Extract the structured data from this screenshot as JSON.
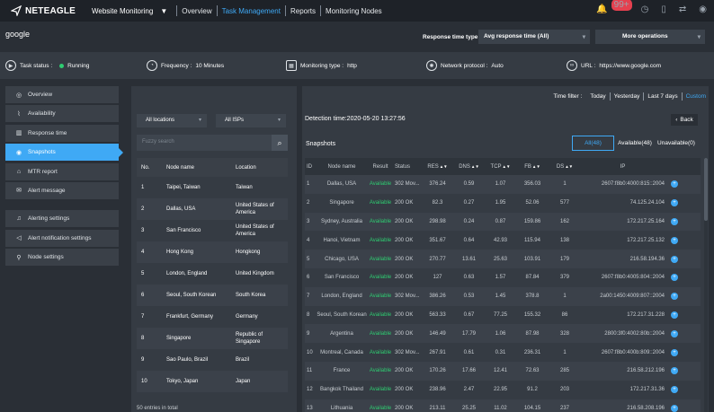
{
  "app": {
    "logo_text": "NETEAGLE",
    "module_menu": "Website Monitoring",
    "nav": [
      "Overview",
      "Task Management",
      "Reports",
      "Monitoring Nodes"
    ],
    "active_nav": "Task Management",
    "notifications_badge": "99+"
  },
  "page": {
    "title": "google",
    "response_type_label": "Response time type :",
    "response_type_value": "Avg response time (All)",
    "more_operations": "More operations"
  },
  "status": {
    "task_status_label": "Task status :",
    "task_status_value": "Running",
    "frequency_label": "Frequency :",
    "frequency_value": "10 Minutes",
    "monitoring_type_label": "Monitoring type :",
    "monitoring_type_value": "http",
    "network_protocol_label": "Network protocol :",
    "network_protocol_value": "Auto",
    "url_label": "URL :",
    "url_value": "https://www.google.com"
  },
  "sidebar": {
    "group1": [
      {
        "label": "Overview",
        "icon": "overview-icon"
      },
      {
        "label": "Availability",
        "icon": "availability-icon"
      },
      {
        "label": "Response time",
        "icon": "response-time-icon"
      },
      {
        "label": "Snapshots",
        "icon": "snapshots-icon",
        "active": true
      },
      {
        "label": "MTR report",
        "icon": "mtr-report-icon"
      },
      {
        "label": "Alert message",
        "icon": "alert-message-icon"
      }
    ],
    "group2": [
      {
        "label": "Alerting settings",
        "icon": "bell-icon"
      },
      {
        "label": "Alert notification settings",
        "icon": "megaphone-icon"
      },
      {
        "label": "Node settings",
        "icon": "location-pin-icon"
      }
    ]
  },
  "nodes": {
    "location_filter": "All locations",
    "isp_filter": "All ISPs",
    "search_placeholder": "Fuzzy search",
    "columns": [
      "No.",
      "Node name",
      "Location"
    ],
    "rows": [
      {
        "no": "1",
        "name": "Taipei, Taiwan",
        "location": "Taiwan"
      },
      {
        "no": "2",
        "name": "Dallas, USA",
        "location": "United States of America"
      },
      {
        "no": "3",
        "name": "San Francisco",
        "location": "United States of America"
      },
      {
        "no": "4",
        "name": "Hong Kong",
        "location": "Hongkong"
      },
      {
        "no": "5",
        "name": "London, England",
        "location": "United Kingdom"
      },
      {
        "no": "6",
        "name": "Seoul, South Korean",
        "location": "South Korea"
      },
      {
        "no": "7",
        "name": "Frankfurt, Germany",
        "location": "Germany"
      },
      {
        "no": "8",
        "name": "Singapore",
        "location": "Republic of Singapore"
      },
      {
        "no": "9",
        "name": "Sao Paulo, Brazil",
        "location": "Brazil"
      },
      {
        "no": "10",
        "name": "Tokyo, Japan",
        "location": "Japan"
      }
    ],
    "entries_text": "50 entries in total"
  },
  "time_filter": {
    "label": "Time filter :",
    "options": [
      "Today",
      "Yesterday",
      "Last 7 days",
      "Custom"
    ],
    "active": "Custom"
  },
  "detail": {
    "detection_time": "Detection time:2020-05-20 13:27:56",
    "back_label": "Back",
    "snapshots_title": "Snapshots",
    "tabs": [
      "All(48)",
      "Available(48)",
      "Unavailable(0)"
    ],
    "active_tab": "All(48)",
    "columns": [
      "ID",
      "Node name",
      "Result",
      "Status",
      "RES",
      "DNS",
      "TCP",
      "FB",
      "DS",
      "IP"
    ],
    "rows": [
      {
        "id": "1",
        "node": "Dallas, USA",
        "result": "Available",
        "status": "302 Mov...",
        "res": "376.24",
        "dns": "0.59",
        "tcp": "1.07",
        "fb": "356.03",
        "ds": "1",
        "ip": "2607:f8b0:4000:815::2004"
      },
      {
        "id": "2",
        "node": "Singapore",
        "result": "Available",
        "status": "200 OK",
        "res": "82.3",
        "dns": "0.27",
        "tcp": "1.95",
        "fb": "52.06",
        "ds": "577",
        "ip": "74.125.24.104"
      },
      {
        "id": "3",
        "node": "Sydney, Australia",
        "result": "Available",
        "status": "200 OK",
        "res": "298.98",
        "dns": "0.24",
        "tcp": "0.87",
        "fb": "159.86",
        "ds": "162",
        "ip": "172.217.25.164"
      },
      {
        "id": "4",
        "node": "Hanoi, Vietnam",
        "result": "Available",
        "status": "200 OK",
        "res": "351.67",
        "dns": "0.64",
        "tcp": "42.93",
        "fb": "115.94",
        "ds": "138",
        "ip": "172.217.25.132"
      },
      {
        "id": "5",
        "node": "Chicago, USA",
        "result": "Available",
        "status": "200 OK",
        "res": "270.77",
        "dns": "13.61",
        "tcp": "25.63",
        "fb": "103.91",
        "ds": "179",
        "ip": "216.58.194.36"
      },
      {
        "id": "6",
        "node": "San Francisco",
        "result": "Available",
        "status": "200 OK",
        "res": "127",
        "dns": "0.63",
        "tcp": "1.57",
        "fb": "87.84",
        "ds": "379",
        "ip": "2607:f8b0:4005:804::2004"
      },
      {
        "id": "7",
        "node": "London, England",
        "result": "Available",
        "status": "302 Mov...",
        "res": "386.26",
        "dns": "0.53",
        "tcp": "1.45",
        "fb": "378.8",
        "ds": "1",
        "ip": "2a00:1450:4009:807::2004"
      },
      {
        "id": "8",
        "node": "Seoul, South Korean",
        "result": "Available",
        "status": "200 OK",
        "res": "563.33",
        "dns": "0.67",
        "tcp": "77.25",
        "fb": "155.32",
        "ds": "86",
        "ip": "172.217.31.228"
      },
      {
        "id": "9",
        "node": "Argentina",
        "result": "Available",
        "status": "200 OK",
        "res": "146.49",
        "dns": "17.79",
        "tcp": "1.06",
        "fb": "87.98",
        "ds": "328",
        "ip": "2800:3f0:4002:80b::2004"
      },
      {
        "id": "10",
        "node": "Montreal, Canada",
        "result": "Available",
        "status": "302 Mov...",
        "res": "267.91",
        "dns": "0.61",
        "tcp": "0.31",
        "fb": "236.31",
        "ds": "1",
        "ip": "2607:f8b0:400b:809::2004"
      },
      {
        "id": "11",
        "node": "France",
        "result": "Available",
        "status": "200 OK",
        "res": "170.26",
        "dns": "17.66",
        "tcp": "12.41",
        "fb": "72.63",
        "ds": "285",
        "ip": "216.58.212.196"
      },
      {
        "id": "12",
        "node": "Bangkok Thailand",
        "result": "Available",
        "status": "200 OK",
        "res": "238.96",
        "dns": "2.47",
        "tcp": "22.95",
        "fb": "91.2",
        "ds": "203",
        "ip": "172.217.31.36"
      },
      {
        "id": "13",
        "node": "Lithuania",
        "result": "Available",
        "status": "200 OK",
        "res": "213.11",
        "dns": "25.25",
        "tcp": "11.02",
        "fb": "104.15",
        "ds": "237",
        "ip": "216.58.208.196"
      }
    ]
  },
  "colors": {
    "accent": "#3fa9f5",
    "available": "#2ecc71",
    "topbar": "#1e2228",
    "panel": "#353b43"
  }
}
